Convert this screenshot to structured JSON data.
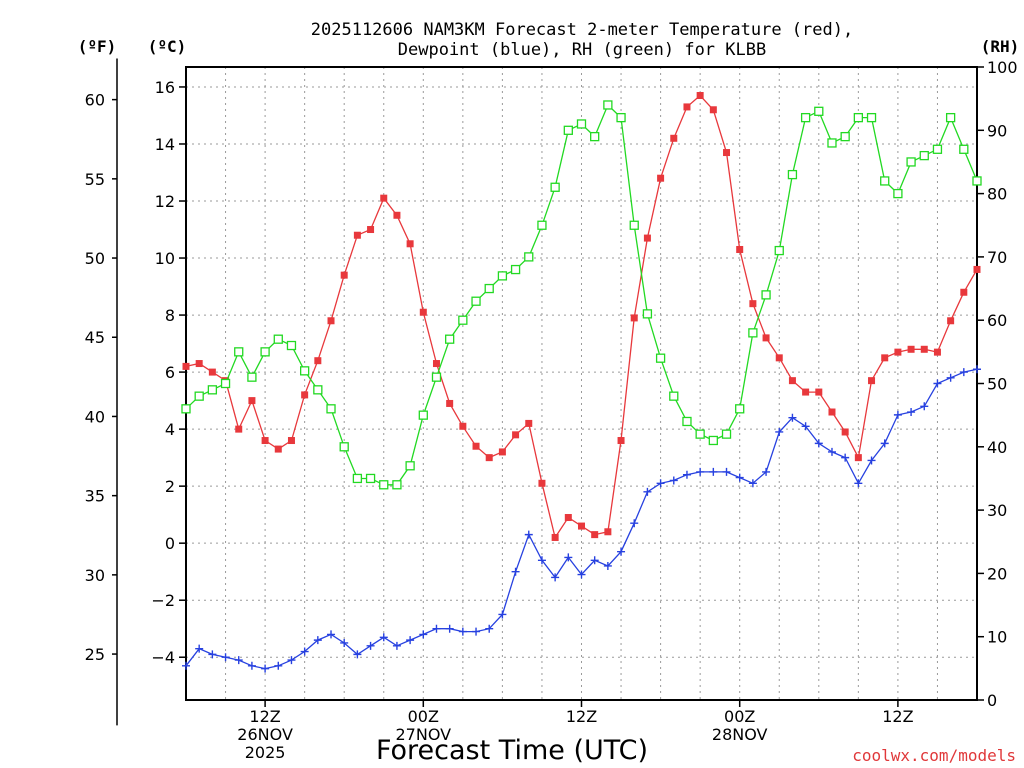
{
  "chart_data": {
    "type": "line",
    "title": [
      "2025112606 NAM3KM Forecast 2-meter Temperature (red),",
      "Dewpoint (blue), RH (green) for KLBB"
    ],
    "xlabel": "Forecast Time (UTC)",
    "credit": "coolwx.com/models",
    "units": {
      "f": "(ºF)",
      "c": "(ºC)",
      "rh": "(RH)"
    },
    "axes": {
      "celsius": {
        "range": [
          -5.5,
          16.7
        ],
        "ticks": [
          -4,
          -2,
          0,
          2,
          4,
          6,
          8,
          10,
          12,
          14,
          16
        ],
        "tick_labels": [
          "−4",
          "−2",
          "0",
          "2",
          "4",
          "6",
          "8",
          "10",
          "12",
          "14",
          "16"
        ]
      },
      "fahrenheit": {
        "ticks": [
          25,
          30,
          35,
          40,
          45,
          50,
          55,
          60
        ],
        "tick_labels": [
          "25",
          "30",
          "35",
          "40",
          "45",
          "50",
          "55",
          "60"
        ]
      },
      "rh": {
        "range": [
          0,
          100
        ],
        "ticks": [
          0,
          10,
          20,
          30,
          40,
          50,
          60,
          70,
          80,
          90,
          100
        ],
        "tick_labels": [
          "0",
          "10",
          "20",
          "30",
          "40",
          "50",
          "60",
          "70",
          "80",
          "90",
          "100"
        ]
      },
      "x": {
        "range_hours": [
          6,
          66
        ]
      }
    },
    "x_ticks": [
      {
        "hour": 12,
        "lines": [
          "12Z",
          "26NOV",
          "2025"
        ]
      },
      {
        "hour": 24,
        "lines": [
          "00Z",
          "27NOV"
        ]
      },
      {
        "hour": 36,
        "lines": [
          "12Z"
        ]
      },
      {
        "hour": 48,
        "lines": [
          "00Z",
          "28NOV"
        ]
      },
      {
        "hour": 60,
        "lines": [
          "12Z"
        ]
      }
    ],
    "hours": [
      6,
      7,
      8,
      9,
      10,
      11,
      12,
      13,
      14,
      15,
      16,
      17,
      18,
      19,
      20,
      21,
      22,
      23,
      24,
      25,
      26,
      27,
      28,
      29,
      30,
      31,
      32,
      33,
      34,
      35,
      36,
      37,
      38,
      39,
      40,
      41,
      42,
      43,
      44,
      45,
      46,
      47,
      48,
      49,
      50,
      51,
      52,
      53,
      54,
      55,
      56,
      57,
      58,
      59,
      60,
      61,
      62,
      63,
      64,
      65,
      66
    ],
    "series": [
      {
        "name": "Temperature (°C)",
        "color": "#e8383c",
        "marker": "filled-square",
        "axis": "celsius",
        "values": [
          6.2,
          6.3,
          6.0,
          5.7,
          4.0,
          5.0,
          3.6,
          3.3,
          3.6,
          5.2,
          6.4,
          7.8,
          9.4,
          10.8,
          11.0,
          12.1,
          11.5,
          10.5,
          8.1,
          6.3,
          4.9,
          4.1,
          3.4,
          3.0,
          3.2,
          3.8,
          4.2,
          2.1,
          0.2,
          0.9,
          0.6,
          0.3,
          0.4,
          3.6,
          7.9,
          10.7,
          12.8,
          14.2,
          15.3,
          15.7,
          15.2,
          13.7,
          10.3,
          8.4,
          7.2,
          6.5,
          5.7,
          5.3,
          5.3,
          4.6,
          3.9,
          3.0,
          5.7,
          6.5,
          6.7,
          6.8,
          6.8,
          6.7,
          7.8,
          8.8,
          9.6
        ]
      },
      {
        "name": "Dewpoint (°C)",
        "color": "#2741e0",
        "marker": "plus",
        "axis": "celsius",
        "values": [
          -4.3,
          -3.7,
          -3.9,
          -4.0,
          -4.1,
          -4.3,
          -4.4,
          -4.3,
          -4.1,
          -3.8,
          -3.4,
          -3.2,
          -3.5,
          -3.9,
          -3.6,
          -3.3,
          -3.6,
          -3.4,
          -3.2,
          -3.0,
          -3.0,
          -3.1,
          -3.1,
          -3.0,
          -2.5,
          -1.0,
          0.3,
          -0.6,
          -1.2,
          -0.5,
          -1.1,
          -0.6,
          -0.8,
          -0.3,
          0.7,
          1.8,
          2.1,
          2.2,
          2.4,
          2.5,
          2.5,
          2.5,
          2.3,
          2.1,
          2.5,
          3.9,
          4.4,
          4.1,
          3.5,
          3.2,
          3.0,
          2.1,
          2.9,
          3.5,
          4.5,
          4.6,
          4.8,
          5.6,
          5.8,
          6.0,
          6.1
        ]
      },
      {
        "name": "Relative Humidity (%)",
        "color": "#22d922",
        "marker": "open-square",
        "axis": "rh",
        "values": [
          46,
          48,
          49,
          50,
          55,
          51,
          55,
          57,
          56,
          52,
          49,
          46,
          40,
          35,
          35,
          34,
          34,
          37,
          45,
          51,
          57,
          60,
          63,
          65,
          67,
          68,
          70,
          75,
          81,
          90,
          91,
          89,
          94,
          92,
          75,
          61,
          54,
          48,
          44,
          42,
          41,
          42,
          46,
          58,
          64,
          71,
          83,
          92,
          93,
          88,
          89,
          92,
          92,
          82,
          80,
          85,
          86,
          87,
          92,
          87,
          82
        ]
      }
    ]
  }
}
